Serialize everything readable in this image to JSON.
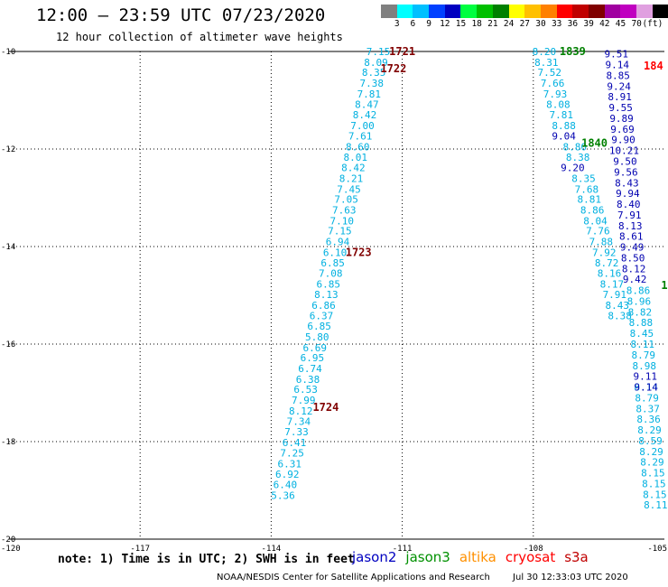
{
  "title": "12:00 – 23:59 UTC 07/23/2020",
  "subtitle": "12 hour collection of altimeter wave heights",
  "colorbar": {
    "colors": [
      "#808080",
      "#00ffff",
      "#00c0ff",
      "#0040ff",
      "#0000c0",
      "#00ff40",
      "#00c000",
      "#008000",
      "#ffff00",
      "#ffc000",
      "#ff8000",
      "#ff0000",
      "#c00000",
      "#800000",
      "#a000a0",
      "#c000c0",
      "#e0a0e0",
      "#000000"
    ],
    "labels": [
      "3",
      "6",
      "9",
      "12",
      "15",
      "18",
      "21",
      "24",
      "27",
      "30",
      "33",
      "36",
      "39",
      "42",
      "45",
      "70",
      "(ft)"
    ]
  },
  "chart_data": {
    "type": "scatter",
    "xlim": [
      -120,
      -105
    ],
    "ylim": [
      -20,
      -10
    ],
    "x_ticks": [
      -120,
      -117,
      -114,
      -111,
      -108,
      -105
    ],
    "x_tick_labels": [
      "-120",
      "-117",
      "-114",
      "-111",
      "-108",
      "-105"
    ],
    "y_ticks": [
      -10,
      -12,
      -14,
      -16,
      -18,
      -20
    ],
    "y_tick_labels": [
      "-10",
      "-12",
      "-14",
      "-16",
      "-18",
      "-20"
    ],
    "grid": true,
    "tracks": [
      {
        "satellite": "jason3",
        "color": "#00b0e0",
        "points": [
          {
            "x": -111.55,
            "y": -10.0,
            "v": "7.15"
          },
          {
            "x": -111.6,
            "y": -10.22,
            "v": "8.09"
          },
          {
            "x": -111.65,
            "y": -10.43,
            "v": "8.35"
          },
          {
            "x": -111.7,
            "y": -10.65,
            "v": "7.38"
          },
          {
            "x": -111.76,
            "y": -10.87,
            "v": "7.81"
          },
          {
            "x": -111.81,
            "y": -11.08,
            "v": "8.47"
          },
          {
            "x": -111.86,
            "y": -11.3,
            "v": "8.42"
          },
          {
            "x": -111.91,
            "y": -11.52,
            "v": "7.00"
          },
          {
            "x": -111.96,
            "y": -11.73,
            "v": "7.61"
          },
          {
            "x": -112.02,
            "y": -11.95,
            "v": "8.60"
          },
          {
            "x": -112.07,
            "y": -12.17,
            "v": "8.01"
          },
          {
            "x": -112.12,
            "y": -12.38,
            "v": "8.42"
          },
          {
            "x": -112.17,
            "y": -12.6,
            "v": "8.21"
          },
          {
            "x": -112.22,
            "y": -12.82,
            "v": "7.45"
          },
          {
            "x": -112.28,
            "y": -13.03,
            "v": "7.05"
          },
          {
            "x": -112.33,
            "y": -13.25,
            "v": "7.63"
          },
          {
            "x": -112.38,
            "y": -13.47,
            "v": "7.10"
          },
          {
            "x": -112.43,
            "y": -13.68,
            "v": "7.15"
          },
          {
            "x": -112.48,
            "y": -13.9,
            "v": "6.94"
          },
          {
            "x": -112.54,
            "y": -14.12,
            "v": "6.10"
          },
          {
            "x": -112.59,
            "y": -14.33,
            "v": "6.85"
          },
          {
            "x": -112.64,
            "y": -14.55,
            "v": "7.08"
          },
          {
            "x": -112.69,
            "y": -14.77,
            "v": "6.85"
          },
          {
            "x": -112.74,
            "y": -14.98,
            "v": "8.13"
          },
          {
            "x": -112.8,
            "y": -15.2,
            "v": "6.86"
          },
          {
            "x": -112.85,
            "y": -15.42,
            "v": "6.37"
          },
          {
            "x": -112.9,
            "y": -15.63,
            "v": "6.85"
          },
          {
            "x": -112.95,
            "y": -15.85,
            "v": "5.80"
          },
          {
            "x": -113.0,
            "y": -16.07,
            "v": "6.69"
          },
          {
            "x": -113.06,
            "y": -16.28,
            "v": "6.95"
          },
          {
            "x": -113.11,
            "y": -16.5,
            "v": "6.74"
          },
          {
            "x": -113.16,
            "y": -16.72,
            "v": "6.38"
          },
          {
            "x": -113.21,
            "y": -16.93,
            "v": "6.53"
          },
          {
            "x": -113.26,
            "y": -17.15,
            "v": "7.99"
          },
          {
            "x": -113.32,
            "y": -17.37,
            "v": "8.12"
          },
          {
            "x": -113.37,
            "y": -17.58,
            "v": "7.34"
          },
          {
            "x": -113.42,
            "y": -17.8,
            "v": "7.33"
          },
          {
            "x": -113.47,
            "y": -18.02,
            "v": "6.41"
          },
          {
            "x": -113.52,
            "y": -18.23,
            "v": "7.25"
          },
          {
            "x": -113.58,
            "y": -18.45,
            "v": "6.31"
          },
          {
            "x": -113.63,
            "y": -18.67,
            "v": "6.92"
          },
          {
            "x": -113.68,
            "y": -18.88,
            "v": "6.40"
          },
          {
            "x": -113.73,
            "y": -19.1,
            "v": "5.36"
          }
        ]
      },
      {
        "satellite": "jason3",
        "color": "#00b0e0",
        "points": [
          {
            "x": -107.75,
            "y": -10.0,
            "v": "8.20"
          },
          {
            "x": -107.7,
            "y": -10.22,
            "v": "8.31"
          },
          {
            "x": -107.63,
            "y": -10.43,
            "v": "7.52"
          },
          {
            "x": -107.56,
            "y": -10.65,
            "v": "7.66"
          },
          {
            "x": -107.5,
            "y": -10.87,
            "v": "7.93"
          },
          {
            "x": -107.43,
            "y": -11.08,
            "v": "8.08"
          },
          {
            "x": -107.36,
            "y": -11.3,
            "v": "7.81"
          },
          {
            "x": -107.3,
            "y": -11.52,
            "v": "8.88"
          },
          {
            "x": -107.05,
            "y": -11.95,
            "v": "8.80"
          },
          {
            "x": -106.98,
            "y": -12.17,
            "v": "8.38"
          },
          {
            "x": -106.85,
            "y": -12.6,
            "v": "8.35"
          },
          {
            "x": -106.78,
            "y": -12.82,
            "v": "7.68"
          },
          {
            "x": -106.72,
            "y": -13.03,
            "v": "8.81"
          },
          {
            "x": -106.65,
            "y": -13.25,
            "v": "8.86"
          },
          {
            "x": -106.58,
            "y": -13.47,
            "v": "8.04"
          },
          {
            "x": -106.52,
            "y": -13.68,
            "v": "7.76"
          },
          {
            "x": -106.45,
            "y": -13.9,
            "v": "7.88"
          },
          {
            "x": -106.38,
            "y": -14.12,
            "v": "7.92"
          },
          {
            "x": -106.32,
            "y": -14.33,
            "v": "8.72"
          },
          {
            "x": -106.26,
            "y": -14.55,
            "v": "8.16"
          },
          {
            "x": -106.2,
            "y": -14.77,
            "v": "8.17"
          },
          {
            "x": -106.14,
            "y": -14.98,
            "v": "7.91"
          },
          {
            "x": -106.08,
            "y": -15.2,
            "v": "8.43"
          },
          {
            "x": -106.02,
            "y": -15.42,
            "v": "8.38"
          }
        ]
      },
      {
        "satellite": "jason2",
        "color": "#0000b0",
        "points": [
          {
            "x": -106.1,
            "y": -10.05,
            "v": "9.51"
          },
          {
            "x": -106.08,
            "y": -10.27,
            "v": "9.14"
          },
          {
            "x": -106.06,
            "y": -10.49,
            "v": "8.85"
          },
          {
            "x": -106.04,
            "y": -10.71,
            "v": "9.24"
          },
          {
            "x": -106.02,
            "y": -10.93,
            "v": "8.91"
          },
          {
            "x": -106.0,
            "y": -11.15,
            "v": "9.55"
          },
          {
            "x": -105.98,
            "y": -11.37,
            "v": "9.89"
          },
          {
            "x": -105.96,
            "y": -11.59,
            "v": "9.69"
          },
          {
            "x": -105.94,
            "y": -11.81,
            "v": "9.90"
          },
          {
            "x": -105.92,
            "y": -12.03,
            "v": "10.21"
          },
          {
            "x": -105.9,
            "y": -12.25,
            "v": "9.50"
          },
          {
            "x": -105.88,
            "y": -12.47,
            "v": "9.56"
          },
          {
            "x": -105.86,
            "y": -12.69,
            "v": "8.43"
          },
          {
            "x": -105.84,
            "y": -12.91,
            "v": "9.94"
          },
          {
            "x": -105.82,
            "y": -13.13,
            "v": "8.40"
          },
          {
            "x": -105.8,
            "y": -13.35,
            "v": "7.91"
          },
          {
            "x": -105.78,
            "y": -13.57,
            "v": "8.13"
          },
          {
            "x": -105.76,
            "y": -13.79,
            "v": "8.61"
          },
          {
            "x": -105.74,
            "y": -14.01,
            "v": "9.49"
          },
          {
            "x": -105.72,
            "y": -14.23,
            "v": "8.50"
          },
          {
            "x": -105.7,
            "y": -14.45,
            "v": "8.12"
          },
          {
            "x": -105.68,
            "y": -14.67,
            "v": "9.42"
          }
        ]
      },
      {
        "satellite": "jason2",
        "color": "#0000b0",
        "points": [
          {
            "x": -107.3,
            "y": -11.73,
            "v": "9.04"
          },
          {
            "x": -107.1,
            "y": -12.38,
            "v": "9.20"
          }
        ]
      },
      {
        "satellite": "jason3",
        "color": "#00b0e0",
        "points": [
          {
            "x": -105.6,
            "y": -14.9,
            "v": "8.86"
          },
          {
            "x": -105.58,
            "y": -15.12,
            "v": "8.96"
          },
          {
            "x": -105.56,
            "y": -15.34,
            "v": "8.82"
          },
          {
            "x": -105.54,
            "y": -15.56,
            "v": "8.88"
          },
          {
            "x": -105.52,
            "y": -15.78,
            "v": "8.45"
          },
          {
            "x": -105.5,
            "y": -16.0,
            "v": "8.11"
          },
          {
            "x": -105.48,
            "y": -16.22,
            "v": "8.79"
          },
          {
            "x": -105.46,
            "y": -16.44,
            "v": "8.98"
          },
          {
            "x": -105.42,
            "y": -16.88,
            "v": "8.14"
          },
          {
            "x": -105.4,
            "y": -17.1,
            "v": "8.79"
          },
          {
            "x": -105.38,
            "y": -17.32,
            "v": "8.37"
          },
          {
            "x": -105.36,
            "y": -17.54,
            "v": "8.36"
          },
          {
            "x": -105.34,
            "y": -17.76,
            "v": "8.29"
          },
          {
            "x": -105.32,
            "y": -17.98,
            "v": "8.59"
          },
          {
            "x": -105.3,
            "y": -18.2,
            "v": "8.29"
          },
          {
            "x": -105.28,
            "y": -18.42,
            "v": "8.29"
          },
          {
            "x": -105.26,
            "y": -18.64,
            "v": "8.15"
          },
          {
            "x": -105.24,
            "y": -18.86,
            "v": "8.15"
          },
          {
            "x": -105.22,
            "y": -19.08,
            "v": "8.15"
          },
          {
            "x": -105.2,
            "y": -19.3,
            "v": "8.11"
          }
        ]
      },
      {
        "satellite": "jason2",
        "color": "#0000b0",
        "points": [
          {
            "x": -105.44,
            "y": -16.66,
            "v": "9.11"
          },
          {
            "x": -105.42,
            "y": -16.88,
            "v": "9.14"
          }
        ]
      }
    ],
    "pass_labels": [
      {
        "x": -111.0,
        "y": -10.0,
        "text": "1721",
        "color": "#800000"
      },
      {
        "x": -111.2,
        "y": -10.35,
        "text": "1722",
        "color": "#800000"
      },
      {
        "x": -112.0,
        "y": -14.12,
        "text": "1723",
        "color": "#800000"
      },
      {
        "x": -112.75,
        "y": -17.3,
        "text": "1724",
        "color": "#800000"
      },
      {
        "x": -107.1,
        "y": -10.0,
        "text": "1839",
        "color": "#008000"
      },
      {
        "x": -106.6,
        "y": -11.88,
        "text": "1840",
        "color": "#008000"
      },
      {
        "x": -105.25,
        "y": -10.3,
        "text": "184",
        "color": "#ff0000"
      },
      {
        "x": -105.0,
        "y": -14.8,
        "text": "1",
        "color": "#008000"
      }
    ]
  },
  "note": "note: 1) Time is in UTC; 2) SWH is in feet",
  "legend": [
    {
      "label": "jason2",
      "color": "#0000c0"
    },
    {
      "label": "jason3",
      "color": "#009000"
    },
    {
      "label": "altika",
      "color": "#ff9000"
    },
    {
      "label": "cryosat",
      "color": "#ff0000"
    },
    {
      "label": "s3a",
      "color": "#c00000"
    }
  ],
  "credit": {
    "org": "NOAA/NESDIS Center for Satellite Applications and Research",
    "timestamp": "Jul 30 12:33:03 UTC 2020"
  }
}
